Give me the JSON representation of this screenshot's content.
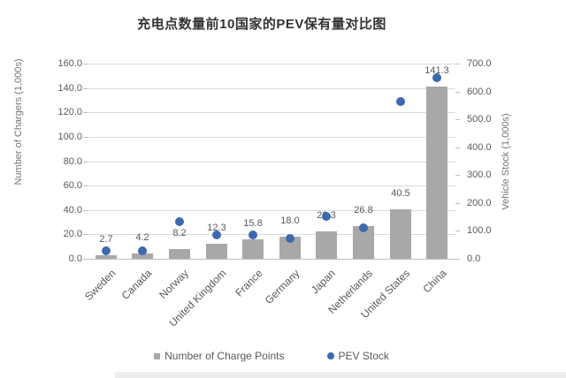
{
  "chart_data": {
    "type": "bar+scatter",
    "title": "充电点数量前10国家的PEV保有量对比图",
    "categories": [
      "Sweden",
      "Canada",
      "Norway",
      "United Kingdom",
      "France",
      "Germany",
      "Japan",
      "Netherlands",
      "United States",
      "China"
    ],
    "series": [
      {
        "name": "Number of Charge Points",
        "type": "bar",
        "axis": "left",
        "color": "#a8a8a8",
        "values": [
          2.7,
          4.2,
          8.2,
          12.3,
          15.8,
          18.0,
          22.3,
          26.8,
          40.5,
          141.3
        ],
        "data_labels": [
          "2.7",
          "4.2",
          "8.2",
          "12.3",
          "15.8",
          "18.0",
          "22.3",
          "26.8",
          "40.5",
          "141.3"
        ]
      },
      {
        "name": "PEV Stock",
        "type": "scatter",
        "axis": "right",
        "color": "#3e68b0",
        "values": [
          29.3,
          29.3,
          133.3,
          86.4,
          84.0,
          72.7,
          151.3,
          112.0,
          563.7,
          648.8
        ]
      }
    ],
    "left_axis": {
      "label": "Number of Chargers (1,000s)",
      "min": 0,
      "max": 160,
      "step": 20
    },
    "right_axis": {
      "label": "Vehicle Stock (1,000s)",
      "min": 0,
      "max": 700,
      "step": 100
    },
    "grid": true,
    "legend_position": "bottom"
  }
}
